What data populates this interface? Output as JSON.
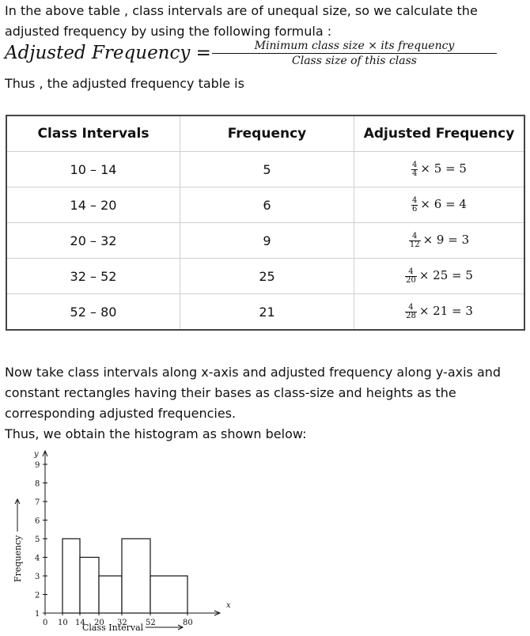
{
  "intro": {
    "line1": "In the above table , class intervals are of unequal size, so we calculate the",
    "line2": "adjusted frequency by using the following formula :"
  },
  "formula": {
    "lhs": "Adjusted   Frequency =",
    "numerator": "Minimum   class   size   ×   its   frequency",
    "denominator": "Class   size   of   this   class"
  },
  "thus_line": "Thus , the adjusted frequency table is",
  "table": {
    "headers": [
      "Class Intervals",
      "Frequency",
      "Adjusted Frequency"
    ],
    "rows": [
      {
        "interval": "10 – 14",
        "frequency": "5",
        "adj_num": "4",
        "adj_den": "4",
        "adj_rest": "× 5 = 5"
      },
      {
        "interval": "14 – 20",
        "frequency": "6",
        "adj_num": "4",
        "adj_den": "6",
        "adj_rest": "× 6 = 4"
      },
      {
        "interval": "20 – 32",
        "frequency": "9",
        "adj_num": "4",
        "adj_den": "12",
        "adj_rest": "× 9 = 3"
      },
      {
        "interval": "32 – 52",
        "frequency": "25",
        "adj_num": "4",
        "adj_den": "20",
        "adj_rest": "× 25 = 5"
      },
      {
        "interval": "52 – 80",
        "frequency": "21",
        "adj_num": "4",
        "adj_den": "28",
        "adj_rest": "× 21 = 3"
      }
    ]
  },
  "explanation": {
    "line1": "Now take class intervals along x-axis and adjusted frequency along y-axis and",
    "line2": "constant rectangles having their bases as class-size and heights as the",
    "line3": "corresponding adjusted frequencies.",
    "line4": "Thus, we obtain the histogram as shown below:"
  },
  "chart_data": {
    "type": "bar",
    "xlabel": "Class Interval",
    "ylabel": "Frequency",
    "x_axis_symbol": "x",
    "y_axis_symbol": "y",
    "x_ticks": [
      "0",
      "10",
      "14",
      "20",
      "32",
      "52",
      "80"
    ],
    "y_ticks": [
      "1",
      "2",
      "3",
      "4",
      "5",
      "6",
      "7",
      "8",
      "9"
    ],
    "bins": [
      {
        "start": 10,
        "end": 14,
        "value": 5
      },
      {
        "start": 14,
        "end": 20,
        "value": 4
      },
      {
        "start": 20,
        "end": 32,
        "value": 3
      },
      {
        "start": 32,
        "end": 52,
        "value": 5
      },
      {
        "start": 52,
        "end": 80,
        "value": 3
      }
    ],
    "ylim": [
      1,
      9.6
    ]
  }
}
